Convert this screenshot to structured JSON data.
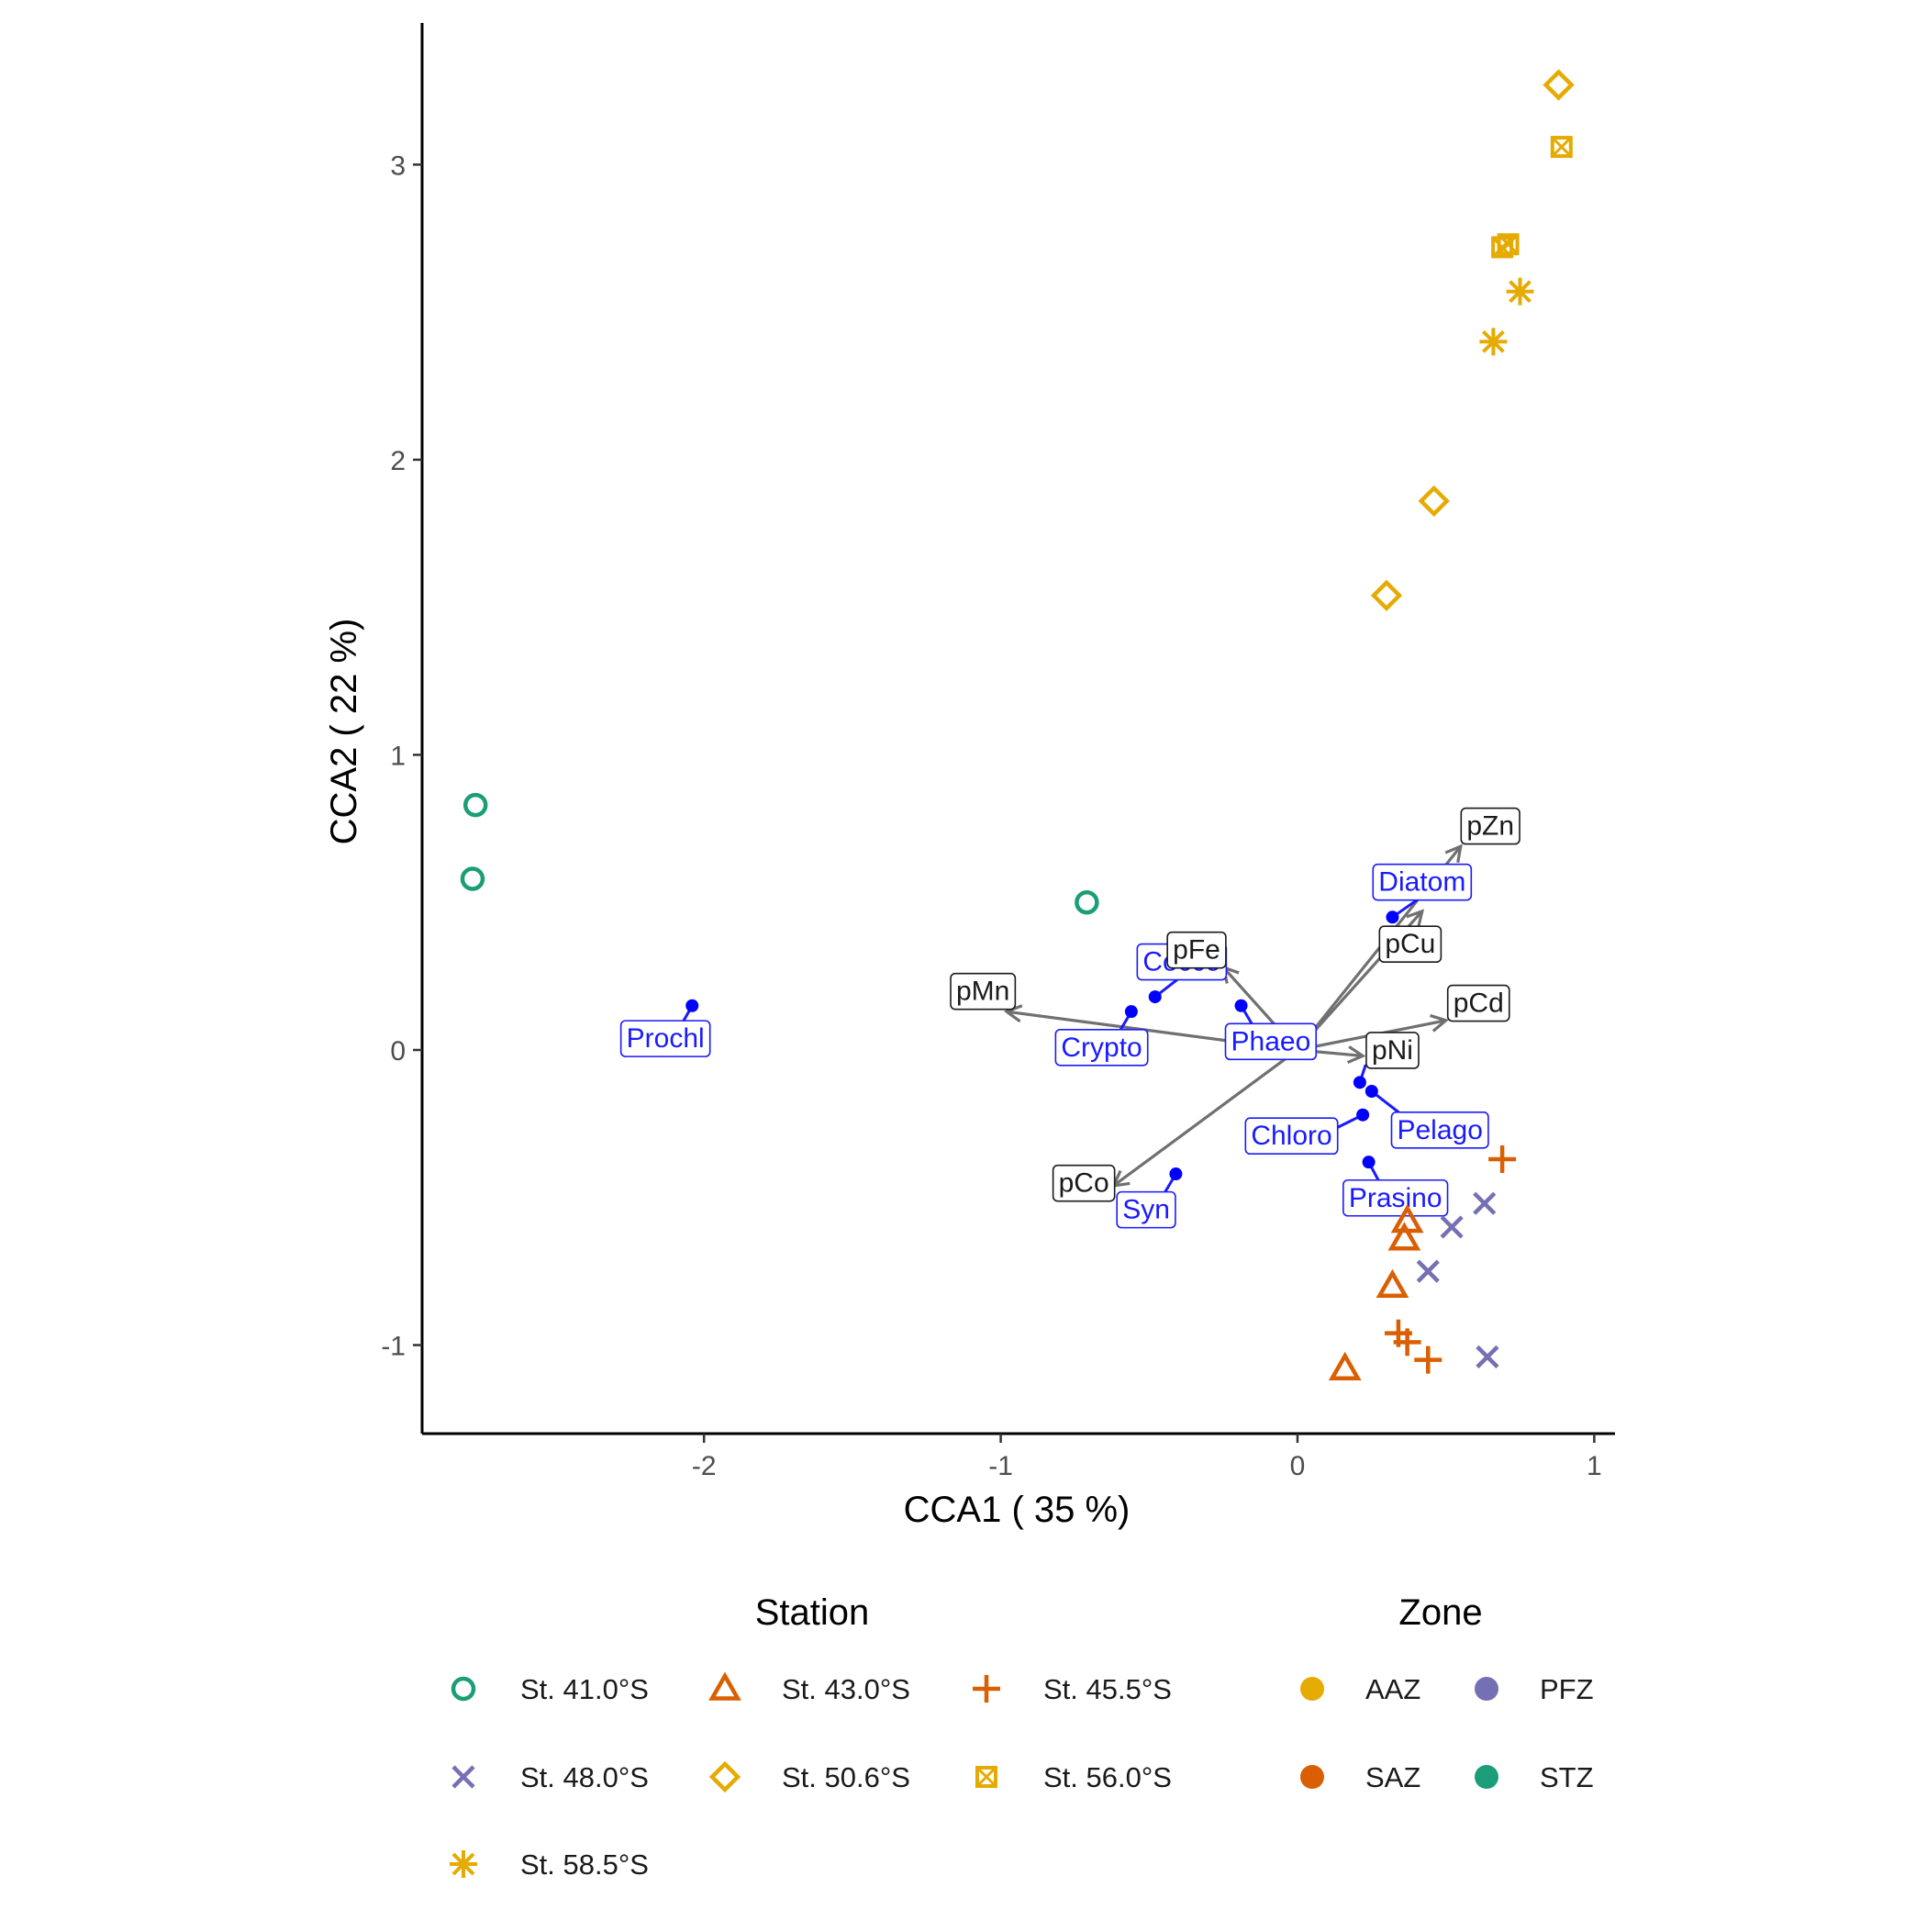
{
  "chart_data": {
    "type": "scatter",
    "xlabel": "CCA1 ( 35 %)",
    "ylabel": "CCA2 ( 22 %)",
    "xlim": [
      -2.95,
      1.07
    ],
    "ylim": [
      -1.3,
      3.48
    ],
    "xticks": [
      -2,
      -1,
      0,
      1
    ],
    "yticks": [
      -1,
      0,
      1,
      2,
      3
    ],
    "grid": false,
    "legend_position": "bottom",
    "stations": {
      "title": "Station",
      "items": [
        {
          "label": "St. 41.0°S",
          "shape": "circle-open",
          "color": "#1b9e77"
        },
        {
          "label": "St. 43.0°S",
          "shape": "triangle-open",
          "color": "#d95f02"
        },
        {
          "label": "St. 45.5°S",
          "shape": "plus",
          "color": "#d95f02"
        },
        {
          "label": "St. 48.0°S",
          "shape": "cross",
          "color": "#7570b3"
        },
        {
          "label": "St. 50.6°S",
          "shape": "diamond-open",
          "color": "#e6ab02"
        },
        {
          "label": "St. 56.0°S",
          "shape": "square-cross",
          "color": "#e6ab02"
        },
        {
          "label": "St. 58.5°S",
          "shape": "asterisk",
          "color": "#e6ab02"
        }
      ]
    },
    "zones": {
      "title": "Zone",
      "items": [
        {
          "label": "AAZ",
          "color": "#e6ab02"
        },
        {
          "label": "PFZ",
          "color": "#7570b3"
        },
        {
          "label": "SAZ",
          "color": "#d95f02"
        },
        {
          "label": "STZ",
          "color": "#1b9e77"
        }
      ]
    },
    "sites": [
      {
        "station": "St. 41.0°S",
        "x": -2.77,
        "y": 0.83
      },
      {
        "station": "St. 41.0°S",
        "x": -2.78,
        "y": 0.58
      },
      {
        "station": "St. 41.0°S",
        "x": -0.71,
        "y": 0.5
      },
      {
        "station": "St. 43.0°S",
        "x": 0.37,
        "y": -0.58
      },
      {
        "station": "St. 43.0°S",
        "x": 0.36,
        "y": -0.64
      },
      {
        "station": "St. 43.0°S",
        "x": 0.32,
        "y": -0.8
      },
      {
        "station": "St. 43.0°S",
        "x": 0.16,
        "y": -1.08
      },
      {
        "station": "St. 45.5°S",
        "x": 0.69,
        "y": -0.37
      },
      {
        "station": "St. 45.5°S",
        "x": 0.34,
        "y": -0.96
      },
      {
        "station": "St. 45.5°S",
        "x": 0.37,
        "y": -0.99
      },
      {
        "station": "St. 45.5°S",
        "x": 0.44,
        "y": -1.05
      },
      {
        "station": "St. 48.0°S",
        "x": 0.63,
        "y": -0.52
      },
      {
        "station": "St. 48.0°S",
        "x": 0.52,
        "y": -0.6
      },
      {
        "station": "St. 48.0°S",
        "x": 0.44,
        "y": -0.75
      },
      {
        "station": "St. 48.0°S",
        "x": 0.64,
        "y": -1.04
      },
      {
        "station": "St. 50.6°S",
        "x": 0.88,
        "y": 3.27
      },
      {
        "station": "St. 50.6°S",
        "x": 0.46,
        "y": 1.86
      },
      {
        "station": "St. 50.6°S",
        "x": 0.3,
        "y": 1.54
      },
      {
        "station": "St. 56.0°S",
        "x": 0.89,
        "y": 3.06
      },
      {
        "station": "St. 56.0°S",
        "x": 0.69,
        "y": 2.72
      },
      {
        "station": "St. 56.0°S",
        "x": 0.71,
        "y": 2.73
      },
      {
        "station": "St. 58.5°S",
        "x": 0.75,
        "y": 2.57
      },
      {
        "station": "St. 58.5°S",
        "x": 0.66,
        "y": 2.4
      }
    ],
    "species": [
      {
        "name": "Prochl",
        "x": -2.04,
        "y": 0.15,
        "lx": -2.13,
        "ly": 0.04
      },
      {
        "name": "Crypto",
        "x": -0.56,
        "y": 0.13,
        "lx": -0.66,
        "ly": 0.01
      },
      {
        "name": "Cocco",
        "x": -0.48,
        "y": 0.18,
        "lx": -0.39,
        "ly": 0.3
      },
      {
        "name": "Phaeo",
        "x": -0.19,
        "y": 0.15,
        "lx": -0.09,
        "ly": 0.03
      },
      {
        "name": "Diatom",
        "x": 0.32,
        "y": 0.45,
        "lx": 0.42,
        "ly": 0.57
      },
      {
        "name": "Pelago",
        "x": 0.25,
        "y": -0.14,
        "lx": 0.48,
        "ly": -0.27
      },
      {
        "name": "Chloro",
        "x": 0.22,
        "y": -0.22,
        "lx": -0.02,
        "ly": -0.29
      },
      {
        "name": "Prasino",
        "x": 0.24,
        "y": -0.38,
        "lx": 0.33,
        "ly": -0.5
      },
      {
        "name": "Syn",
        "x": -0.41,
        "y": -0.42,
        "lx": -0.51,
        "ly": -0.54
      },
      {
        "name": "",
        "x": 0.21,
        "y": -0.11,
        "lx": 0.23,
        "ly": 0.0
      }
    ],
    "vectors": [
      {
        "name": "pZn",
        "x": 0.55,
        "y": 0.69,
        "lx": 0.65,
        "ly": 0.76
      },
      {
        "name": "pCu",
        "x": 0.42,
        "y": 0.47,
        "lx": 0.38,
        "ly": 0.36
      },
      {
        "name": "pFe",
        "x": -0.25,
        "y": 0.28,
        "lx": -0.34,
        "ly": 0.34
      },
      {
        "name": "pMn",
        "x": -0.98,
        "y": 0.13,
        "lx": -1.06,
        "ly": 0.2
      },
      {
        "name": "pCd",
        "x": 0.5,
        "y": 0.1,
        "lx": 0.61,
        "ly": 0.16
      },
      {
        "name": "pNi",
        "x": 0.22,
        "y": -0.02,
        "lx": 0.32,
        "ly": -0.0
      },
      {
        "name": "pCo",
        "x": -0.62,
        "y": -0.46,
        "lx": -0.72,
        "ly": -0.45
      }
    ]
  }
}
